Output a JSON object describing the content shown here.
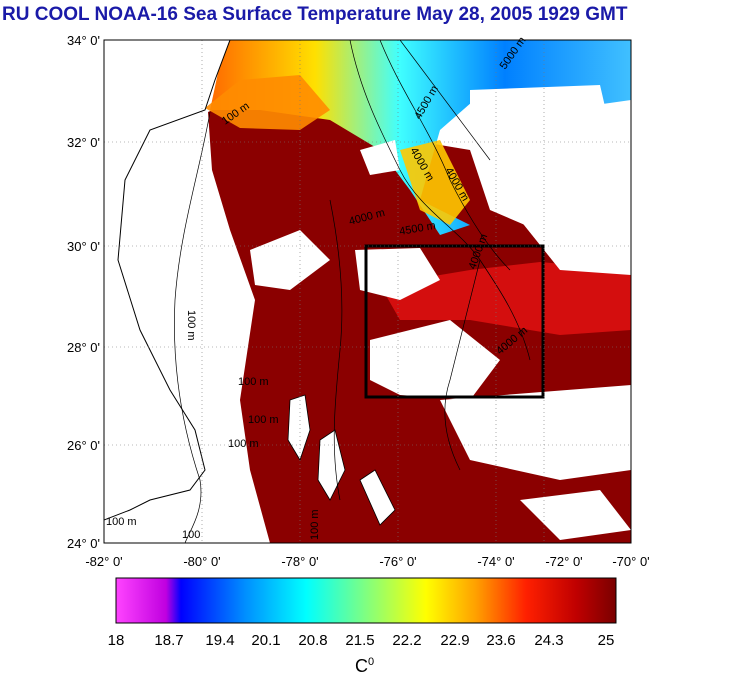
{
  "title": "RU COOL  NOAA-16 Sea Surface Temperature May 28, 2005 1929 GMT",
  "lat_labels": [
    "34° 0'",
    "32° 0'",
    "30° 0'",
    "28° 0'",
    "26° 0'",
    "24° 0'"
  ],
  "lon_labels": [
    "-82° 0'",
    "-80° 0'",
    "-78° 0'",
    "-76° 0'",
    "-74° 0'",
    "-72° 0'",
    "-70° 0'"
  ],
  "contour_labels": [
    "5000 m",
    "4500 m",
    "4000 m",
    "4000 m",
    "4000 m",
    "100 m",
    "100 m",
    "100 m",
    "100 m",
    "100 m",
    "100 m",
    "100",
    "100 m",
    "4000 m",
    "4000 m",
    "4500 m"
  ],
  "colorbar": {
    "ticks": [
      "18",
      "18.7",
      "19.4",
      "20.1",
      "20.8",
      "21.5",
      "22.2",
      "22.9",
      "23.6",
      "24.3",
      "25"
    ],
    "unit_base": "C",
    "unit_sup": "0"
  },
  "colors": {
    "title": "#1a1aa8",
    "warm": "#8b0000",
    "cloud": "#ffffff",
    "land": "#ffffff"
  },
  "box": {
    "lat_range": [
      27,
      30
    ],
    "lon_range": [
      -76,
      -72
    ]
  }
}
